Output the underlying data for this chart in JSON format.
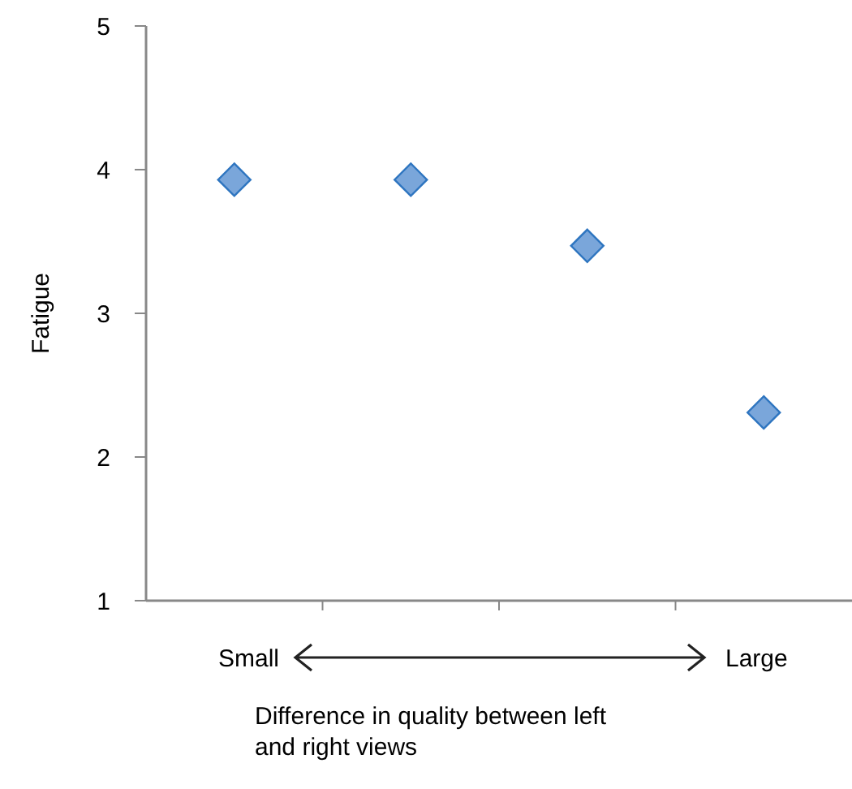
{
  "chart_data": {
    "type": "scatter",
    "categories": [
      null,
      null,
      null,
      null
    ],
    "series": [
      {
        "color": "#7aa6da",
        "values": [
          3.93,
          3.93,
          3.47,
          2.31
        ]
      }
    ],
    "ylim": [
      1,
      5
    ],
    "yticks": [
      1,
      2,
      3,
      4,
      5
    ],
    "ylabel": "Fatigue",
    "xlabel": "Difference in quality between left and right views",
    "annotations": [
      "Small",
      "Large"
    ],
    "marker": "diamond",
    "grid": false
  }
}
